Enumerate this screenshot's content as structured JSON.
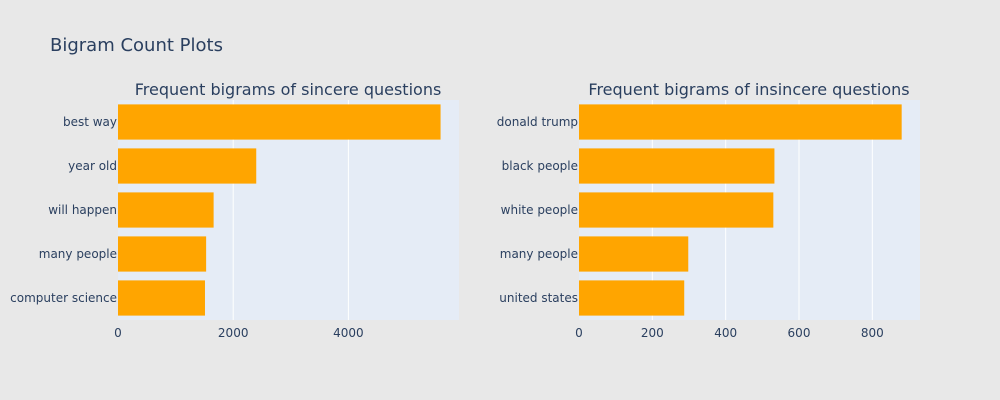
{
  "figure": {
    "title": "Bigram Count Plots"
  },
  "chart_data": [
    {
      "type": "bar",
      "orientation": "horizontal",
      "title": "Frequent bigrams of sincere questions",
      "categories": [
        "best way",
        "year old",
        "will happen",
        "many people",
        "computer science"
      ],
      "values": [
        5600,
        2400,
        1660,
        1530,
        1510
      ],
      "xlim": [
        0,
        5920
      ],
      "xticks": [
        0,
        2000,
        4000
      ],
      "xlabel": "",
      "ylabel": "",
      "grid": true,
      "bar_color": "#ffa500"
    },
    {
      "type": "bar",
      "orientation": "horizontal",
      "title": "Frequent bigrams of insincere questions",
      "categories": [
        "donald trump",
        "black people",
        "white people",
        "many people",
        "united states"
      ],
      "values": [
        880,
        533,
        530,
        298,
        287
      ],
      "xlim": [
        0,
        930
      ],
      "xticks": [
        0,
        200,
        400,
        600,
        800
      ],
      "xlabel": "",
      "ylabel": "",
      "grid": true,
      "bar_color": "#ffa500"
    }
  ],
  "colors": {
    "paper": "#e8e8e8",
    "plot_bg": "#e5ecf6",
    "grid": "#ffffff",
    "text": "#2a3f5f"
  }
}
